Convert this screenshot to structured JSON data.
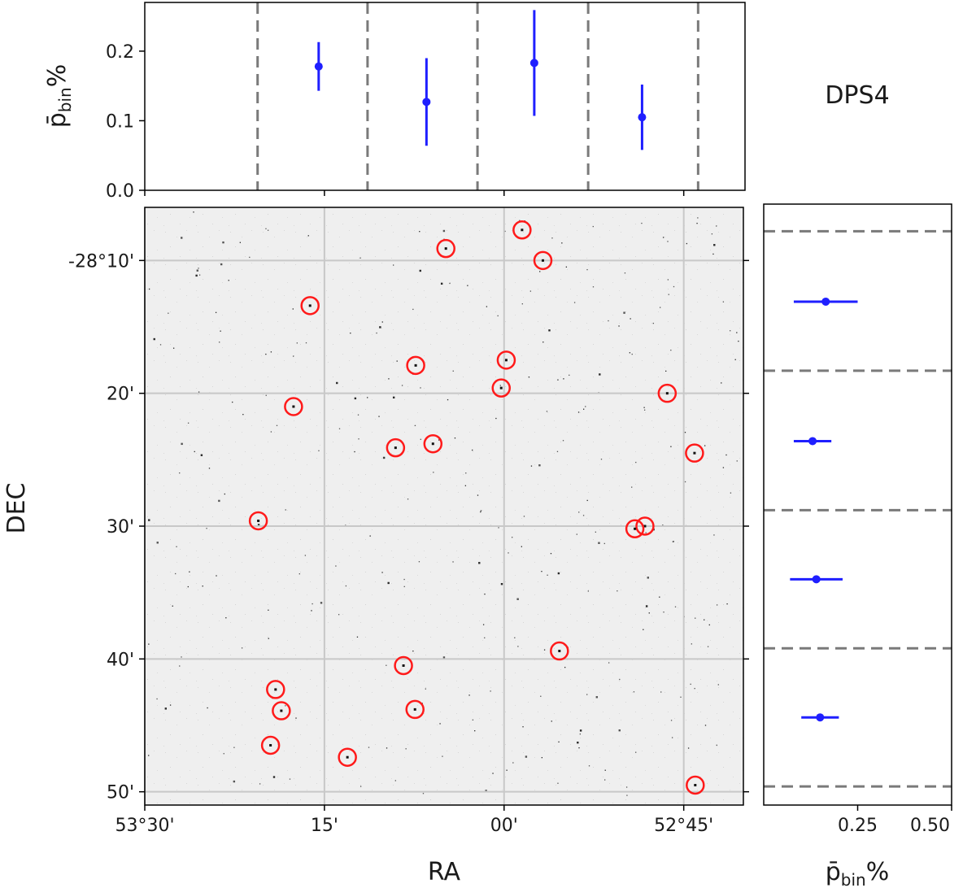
{
  "chart_data": [
    {
      "type": "scatter",
      "panel": "top",
      "title": "DPS4",
      "ylabel": "p̄",
      "ylabel_subscript": "bin",
      "ylabel_suffix": "%",
      "ylim": [
        0,
        0.27
      ],
      "yticks": [
        0.0,
        0.1,
        0.2
      ],
      "ytick_labels": [
        "0.0",
        "0.1",
        "0.2"
      ],
      "x_axis": "RA (deg)",
      "xlim": [
        53.5,
        52.667
      ],
      "bin_edges": [
        53.343,
        53.19,
        53.037,
        52.883,
        52.73
      ],
      "points": [
        {
          "x": 53.258,
          "y": 0.178,
          "err": 0.035
        },
        {
          "x": 53.108,
          "y": 0.127,
          "err": 0.063
        },
        {
          "x": 52.958,
          "y": 0.183,
          "err": 0.076
        },
        {
          "x": 52.808,
          "y": 0.105,
          "err": 0.047
        }
      ]
    },
    {
      "type": "image",
      "panel": "main",
      "xlabel": "RA",
      "ylabel": "DEC",
      "xlim": [
        53.5,
        52.667
      ],
      "ylim_arcmin": [
        -51,
        -6
      ],
      "xticks": [
        53.5,
        53.25,
        53.0,
        52.75
      ],
      "xtick_labels": [
        "53°30'",
        "15'",
        "00'",
        "52°45'"
      ],
      "yticks_arcmin": [
        -10,
        -20,
        -30,
        -40,
        -50
      ],
      "ytick_labels": [
        "-28°10'",
        "20'",
        "30'",
        "40'",
        "50'"
      ],
      "sources": [
        {
          "ra": 52.975,
          "dec_arcmin": -7.7
        },
        {
          "ra": 53.081,
          "dec_arcmin": -9.1
        },
        {
          "ra": 52.946,
          "dec_arcmin": -10.0
        },
        {
          "ra": 53.27,
          "dec_arcmin": -13.4
        },
        {
          "ra": 52.997,
          "dec_arcmin": -17.5
        },
        {
          "ra": 53.123,
          "dec_arcmin": -17.9
        },
        {
          "ra": 53.004,
          "dec_arcmin": -19.6
        },
        {
          "ra": 52.773,
          "dec_arcmin": -20.0
        },
        {
          "ra": 53.293,
          "dec_arcmin": -21.0
        },
        {
          "ra": 53.099,
          "dec_arcmin": -23.8
        },
        {
          "ra": 53.151,
          "dec_arcmin": -24.1
        },
        {
          "ra": 52.735,
          "dec_arcmin": -24.5
        },
        {
          "ra": 53.342,
          "dec_arcmin": -29.6
        },
        {
          "ra": 52.804,
          "dec_arcmin": -30.0
        },
        {
          "ra": 52.818,
          "dec_arcmin": -30.2
        },
        {
          "ra": 52.923,
          "dec_arcmin": -39.4
        },
        {
          "ra": 53.14,
          "dec_arcmin": -40.5
        },
        {
          "ra": 53.318,
          "dec_arcmin": -42.3
        },
        {
          "ra": 53.31,
          "dec_arcmin": -43.9
        },
        {
          "ra": 53.124,
          "dec_arcmin": -43.8
        },
        {
          "ra": 53.325,
          "dec_arcmin": -46.5
        },
        {
          "ra": 53.218,
          "dec_arcmin": -47.4
        },
        {
          "ra": 52.734,
          "dec_arcmin": -49.5
        }
      ]
    },
    {
      "type": "scatter",
      "panel": "right",
      "xlabel": "p̄",
      "xlabel_subscript": "bin",
      "xlabel_suffix": "%",
      "xlim": [
        0,
        0.5
      ],
      "xticks": [
        0.25,
        0.5
      ],
      "xtick_labels": [
        "0.25",
        "0.50"
      ],
      "bin_edges_dec_arcmin": [
        -7.8,
        -18.3,
        -28.8,
        -39.2,
        -49.6
      ],
      "points": [
        {
          "dec_arcmin": -13.1,
          "x": 0.165,
          "err": 0.085
        },
        {
          "dec_arcmin": -23.6,
          "x": 0.13,
          "err": 0.05
        },
        {
          "dec_arcmin": -34.0,
          "x": 0.14,
          "err": 0.07
        },
        {
          "dec_arcmin": -44.4,
          "x": 0.15,
          "err": 0.05
        }
      ]
    }
  ]
}
